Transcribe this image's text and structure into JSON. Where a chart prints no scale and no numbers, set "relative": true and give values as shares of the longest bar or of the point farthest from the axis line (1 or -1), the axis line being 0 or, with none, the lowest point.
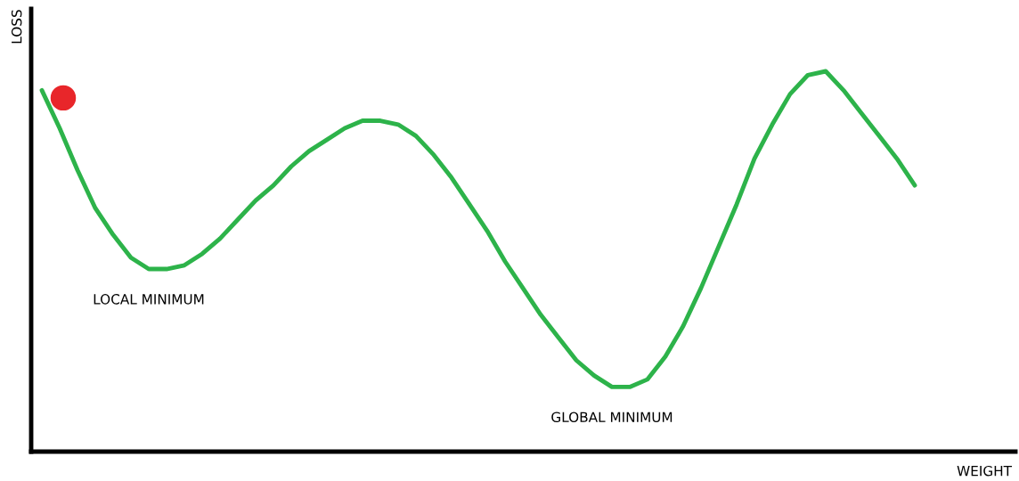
{
  "chart_data": {
    "type": "line",
    "relative": true,
    "tick_labels": false,
    "xlabel": "WEIGHT",
    "ylabel": "LOSS",
    "categories": [
      null,
      null,
      null,
      null,
      null,
      null,
      null,
      null,
      null,
      null,
      null,
      null,
      null,
      null,
      null,
      null,
      null,
      null,
      null,
      null,
      null,
      null,
      null,
      null,
      null,
      null,
      null,
      null,
      null,
      null,
      null,
      null,
      null,
      null,
      null,
      null,
      null,
      null,
      null,
      null,
      null,
      null,
      null,
      null,
      null,
      null,
      null,
      null,
      null,
      null
    ],
    "series": [
      {
        "color": "#2db34a",
        "values": [
          0.95,
          0.85,
          0.74,
          0.64,
          0.57,
          0.51,
          0.48,
          0.48,
          0.49,
          0.52,
          0.56,
          0.61,
          0.66,
          0.7,
          0.75,
          0.79,
          0.82,
          0.85,
          0.87,
          0.87,
          0.86,
          0.83,
          0.78,
          0.72,
          0.65,
          0.58,
          0.5,
          0.43,
          0.36,
          0.3,
          0.24,
          0.2,
          0.17,
          0.17,
          0.19,
          0.25,
          0.33,
          0.43,
          0.54,
          0.65,
          0.77,
          0.86,
          0.94,
          0.99,
          1,
          0.95,
          0.89,
          0.83,
          0.77,
          0.7
        ]
      }
    ],
    "annotations": [
      "LOCAL MINIMUM",
      "GLOBAL MINIMUM"
    ]
  }
}
